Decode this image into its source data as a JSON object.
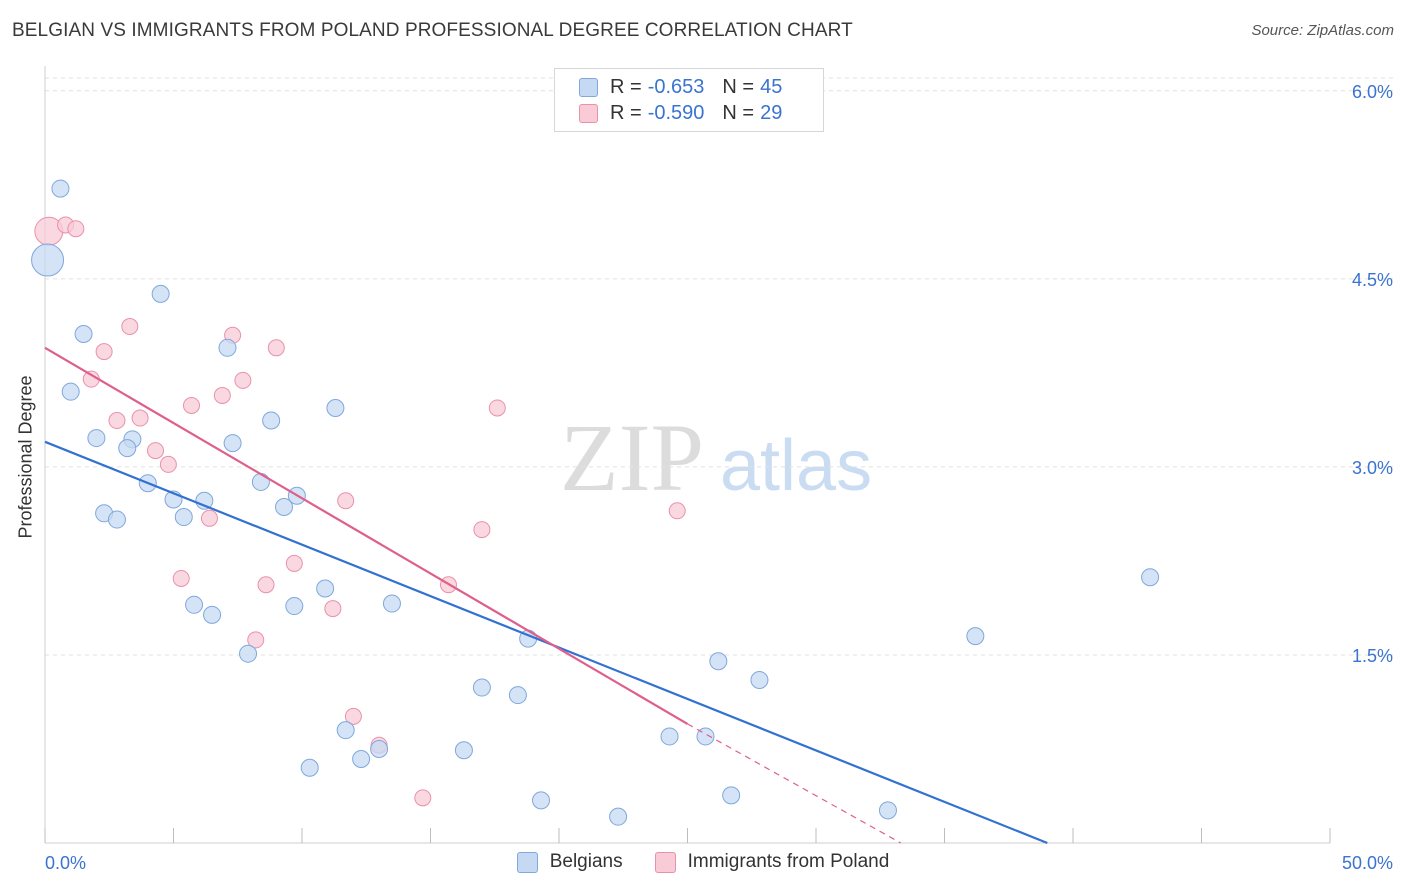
{
  "title": "BELGIAN VS IMMIGRANTS FROM POLAND PROFESSIONAL DEGREE CORRELATION CHART",
  "source": "Source: ZipAtlas.com",
  "watermark": {
    "zip": "ZIP",
    "atlas": "atlas"
  },
  "legend": {
    "r_label": "R =",
    "n_label": "N =",
    "rows": [
      {
        "r": "-0.653",
        "n": "45"
      },
      {
        "r": "-0.590",
        "n": "29"
      }
    ]
  },
  "bottom_legend": [
    "Belgians",
    "Immigrants from Poland"
  ],
  "colors": {
    "blue_fill": "#c5d9f3",
    "blue_stroke": "#7fa8dc",
    "blue_line": "#3271d1",
    "pink_fill": "#f8cbd7",
    "pink_stroke": "#e991aa",
    "pink_line": "#df5f8c",
    "axis_text": "#3a73d0",
    "grid": "#e1e1e1"
  },
  "chart_data": {
    "type": "scatter",
    "title": "BELGIAN VS IMMIGRANTS FROM POLAND PROFESSIONAL DEGREE CORRELATION CHART",
    "xlabel": "",
    "ylabel": "Professional Degree",
    "xlim": [
      0,
      50
    ],
    "ylim": [
      0,
      6.15
    ],
    "x_tick_labels": [
      "0.0%",
      "50.0%"
    ],
    "y_ticks": [
      1.5,
      3.0,
      4.5,
      6.0
    ],
    "y_tick_labels": [
      "1.5%",
      "3.0%",
      "4.5%",
      "6.0%"
    ],
    "grid": "horizontal dashed",
    "legend_position": "top-center",
    "series": [
      {
        "name": "Belgians",
        "r": -0.653,
        "n": 45,
        "trend": {
          "x": [
            0,
            39
          ],
          "y": [
            3.2,
            0.0
          ]
        },
        "points": [
          [
            0.6,
            5.22
          ],
          [
            0.1,
            4.65
          ],
          [
            4.5,
            4.38
          ],
          [
            1.5,
            4.06
          ],
          [
            7.1,
            3.95
          ],
          [
            1.0,
            3.6
          ],
          [
            11.3,
            3.47
          ],
          [
            8.8,
            3.37
          ],
          [
            2.0,
            3.23
          ],
          [
            3.4,
            3.22
          ],
          [
            3.2,
            3.15
          ],
          [
            7.3,
            3.19
          ],
          [
            4.0,
            2.87
          ],
          [
            8.4,
            2.88
          ],
          [
            5.0,
            2.74
          ],
          [
            6.2,
            2.73
          ],
          [
            9.8,
            2.77
          ],
          [
            2.3,
            2.63
          ],
          [
            2.8,
            2.58
          ],
          [
            5.4,
            2.6
          ],
          [
            9.3,
            2.68
          ],
          [
            10.9,
            2.03
          ],
          [
            5.8,
            1.9
          ],
          [
            6.5,
            1.82
          ],
          [
            9.7,
            1.89
          ],
          [
            13.5,
            1.91
          ],
          [
            7.9,
            1.51
          ],
          [
            18.8,
            1.63
          ],
          [
            26.2,
            1.45
          ],
          [
            27.8,
            1.3
          ],
          [
            17.0,
            1.24
          ],
          [
            18.4,
            1.18
          ],
          [
            11.7,
            0.9
          ],
          [
            24.3,
            0.85
          ],
          [
            25.7,
            0.85
          ],
          [
            13.0,
            0.75
          ],
          [
            16.3,
            0.74
          ],
          [
            12.3,
            0.67
          ],
          [
            10.3,
            0.6
          ],
          [
            19.3,
            0.34
          ],
          [
            22.3,
            0.21
          ],
          [
            26.7,
            0.38
          ],
          [
            32.8,
            0.26
          ],
          [
            36.2,
            1.65
          ],
          [
            43.0,
            2.12
          ]
        ]
      },
      {
        "name": "Immigrants from Poland",
        "r": -0.59,
        "n": 29,
        "trend": {
          "x": [
            0,
            25
          ],
          "y": [
            3.95,
            0.95
          ]
        },
        "trend_dashed": {
          "x": [
            25,
            33.3
          ],
          "y": [
            0.95,
            0.0
          ]
        },
        "points": [
          [
            0.15,
            4.88
          ],
          [
            0.8,
            4.93
          ],
          [
            1.2,
            4.9
          ],
          [
            3.3,
            4.12
          ],
          [
            7.3,
            4.05
          ],
          [
            9.0,
            3.95
          ],
          [
            2.3,
            3.92
          ],
          [
            1.8,
            3.7
          ],
          [
            7.7,
            3.69
          ],
          [
            6.9,
            3.57
          ],
          [
            5.7,
            3.49
          ],
          [
            17.6,
            3.47
          ],
          [
            2.8,
            3.37
          ],
          [
            3.7,
            3.39
          ],
          [
            4.3,
            3.13
          ],
          [
            4.8,
            3.02
          ],
          [
            11.7,
            2.73
          ],
          [
            6.4,
            2.59
          ],
          [
            17.0,
            2.5
          ],
          [
            24.6,
            2.65
          ],
          [
            9.7,
            2.23
          ],
          [
            5.3,
            2.11
          ],
          [
            8.6,
            2.06
          ],
          [
            15.7,
            2.06
          ],
          [
            11.2,
            1.87
          ],
          [
            8.2,
            1.62
          ],
          [
            12.0,
            1.01
          ],
          [
            13.0,
            0.78
          ],
          [
            14.7,
            0.36
          ]
        ]
      }
    ]
  }
}
